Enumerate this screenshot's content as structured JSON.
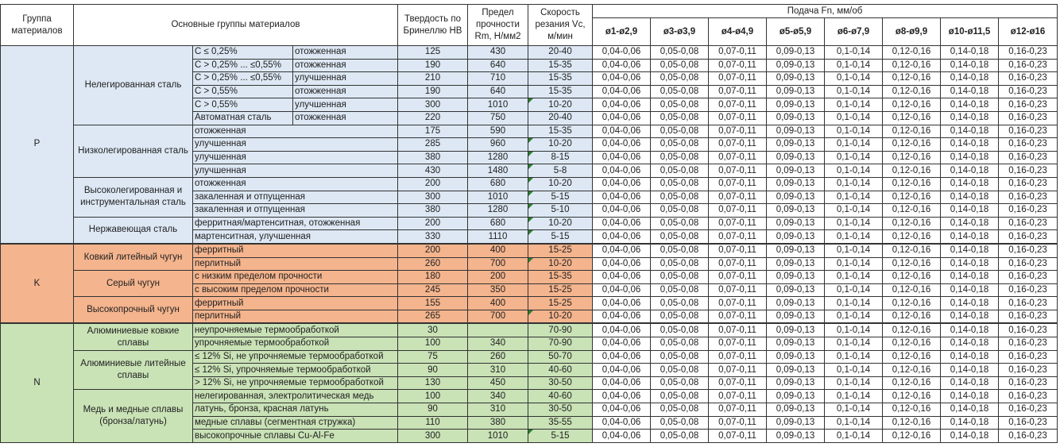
{
  "header": {
    "group": "Группа материалов",
    "main_groups": "Основные группы материалов",
    "hardness": "Твердость по Бринеллю HB",
    "strength": "Предел прочности Rm, Н/мм2",
    "speed": "Скорость резания Vc, м/мин",
    "feed_title": "Подача Fn, мм/об",
    "feed_diameters": [
      "ø1-ø2,9",
      "ø3-ø3,9",
      "ø4-ø4,9",
      "ø5-ø5,9",
      "ø6-ø7,9",
      "ø8-ø9,9",
      "ø10-ø11,5",
      "ø12-ø16"
    ]
  },
  "feed_values": [
    "0,04-0,06",
    "0,05-0,08",
    "0,07-0,11",
    "0,09-0,13",
    "0,1-0,14",
    "0,12-0,16",
    "0,14-0,18",
    "0,16-0,23"
  ],
  "colors": {
    "P": "#dde8f4",
    "K": "#f4b48d",
    "N": "#c9e2b6"
  },
  "groups": [
    {
      "code": "P",
      "subgroups": [
        {
          "name": "Нелегированная сталь",
          "rows": [
            {
              "a": "C ≤ 0,25%",
              "b": "отожженная",
              "hb": "125",
              "rm": "430",
              "vc": "20-40"
            },
            {
              "a": "C > 0,25% ... ≤0,55%",
              "b": "отожженная",
              "hb": "190",
              "rm": "640",
              "vc": "15-35"
            },
            {
              "a": "C > 0,25% ... ≤0,55%",
              "b": "улучшенная",
              "hb": "210",
              "rm": "710",
              "vc": "15-35"
            },
            {
              "a": "C > 0,55%",
              "b": "отожженная",
              "hb": "190",
              "rm": "640",
              "vc": "15-35"
            },
            {
              "a": "C > 0,55%",
              "b": "улучшенная",
              "hb": "300",
              "rm": "1010",
              "vc": "10-20",
              "flag": true
            },
            {
              "a": "Автоматная сталь",
              "b": "отожженная",
              "hb": "220",
              "rm": "750",
              "vc": "20-40"
            }
          ]
        },
        {
          "name": "Низколегированная сталь",
          "rows": [
            {
              "a": "отожженная",
              "hb": "175",
              "rm": "590",
              "vc": "15-35"
            },
            {
              "a": "улучшенная",
              "hb": "285",
              "rm": "960",
              "vc": "10-20",
              "flag": true
            },
            {
              "a": "улучшенная",
              "hb": "380",
              "rm": "1280",
              "vc": "8-15",
              "flag": true
            },
            {
              "a": "улучшенная",
              "hb": "430",
              "rm": "1480",
              "vc": "5-8",
              "flag": true
            }
          ]
        },
        {
          "name": "Высоколегированная и инструментальная сталь",
          "rows": [
            {
              "a": "отожженная",
              "hb": "200",
              "rm": "680",
              "vc": "10-20",
              "flag": true
            },
            {
              "a": "закаленная и отпущенная",
              "hb": "300",
              "rm": "1010",
              "vc": "5-15",
              "flag": true
            },
            {
              "a": "закаленная и отпущенная",
              "hb": "380",
              "rm": "1280",
              "vc": "5-10",
              "flag": true
            }
          ]
        },
        {
          "name": "Нержавеющая сталь",
          "rows": [
            {
              "a": "ферритная/мартенситная, отожженная",
              "hb": "200",
              "rm": "680",
              "vc": "10-20",
              "flag": true
            },
            {
              "a": "мартенситная, улучшенная",
              "hb": "330",
              "rm": "1110",
              "vc": "5-15",
              "flag": true
            }
          ]
        }
      ]
    },
    {
      "code": "K",
      "subgroups": [
        {
          "name": "Ковкий литейный чугун",
          "rows": [
            {
              "a": "ферритный",
              "hb": "200",
              "rm": "400",
              "vc": "15-25"
            },
            {
              "a": "перлитный",
              "hb": "260",
              "rm": "700",
              "vc": "10-20",
              "flag": true
            }
          ]
        },
        {
          "name": "Серый чугун",
          "rows": [
            {
              "a": "с низким пределом прочности",
              "hb": "180",
              "rm": "200",
              "vc": "15-35"
            },
            {
              "a": "с высоким пределом прочности",
              "hb": "245",
              "rm": "350",
              "vc": "15-25"
            }
          ]
        },
        {
          "name": "Высокопрочный чугун",
          "rows": [
            {
              "a": "ферритный",
              "hb": "155",
              "rm": "400",
              "vc": "15-25"
            },
            {
              "a": "перлитный",
              "hb": "265",
              "rm": "700",
              "vc": "10-20",
              "flag": true
            }
          ]
        }
      ]
    },
    {
      "code": "N",
      "subgroups": [
        {
          "name": "Алюминиевые ковкие сплавы",
          "rows": [
            {
              "a": "неупрочняемые термообработкой",
              "hb": "30",
              "rm": "",
              "vc": "70-90"
            },
            {
              "a": "упрочняемые термообработкой",
              "hb": "100",
              "rm": "340",
              "vc": "70-90"
            }
          ]
        },
        {
          "name": "Алюминиевые литейные сплавы",
          "rows": [
            {
              "a": "≤ 12% Si, не упрочняемые термообработкой",
              "hb": "75",
              "rm": "260",
              "vc": "50-70"
            },
            {
              "a": "≤ 12% Si, упрочняемые термообработкой",
              "hb": "90",
              "rm": "310",
              "vc": "40-60"
            },
            {
              "a": "> 12% Si, не упрочняемые термообработкой",
              "hb": "130",
              "rm": "450",
              "vc": "30-50"
            }
          ]
        },
        {
          "name": "Медь и медные сплавы (бронза/латунь)",
          "rows": [
            {
              "a": "нелегированная, электролитическая медь",
              "hb": "100",
              "rm": "340",
              "vc": "40-60"
            },
            {
              "a": "латунь, бронза, красная латунь",
              "hb": "90",
              "rm": "310",
              "vc": "30-50"
            },
            {
              "a": "медные сплавы (сегментная стружка)",
              "hb": "110",
              "rm": "380",
              "vc": "35-55"
            },
            {
              "a": "высокопрочные сплавы Cu-Al-Fe",
              "hb": "300",
              "rm": "1010",
              "vc": "5-15",
              "flag": true
            }
          ]
        }
      ]
    }
  ]
}
